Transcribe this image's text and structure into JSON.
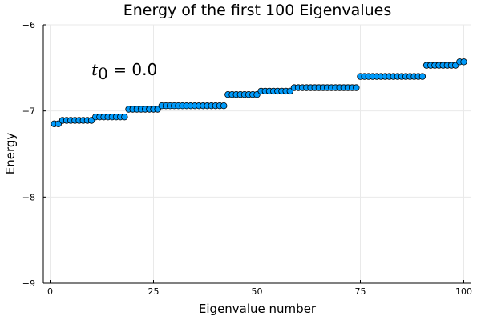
{
  "chart_data": {
    "type": "scatter",
    "title": "Energy of the first 100 Eigenvalues",
    "xlabel": "Eigenvalue number",
    "ylabel": "Energy",
    "xlim": [
      0,
      100
    ],
    "ylim": [
      -9,
      -6
    ],
    "xticks": [
      0,
      25,
      50,
      75,
      100
    ],
    "xtick_labels": [
      "0",
      "25",
      "50",
      "75",
      "100"
    ],
    "yticks": [
      -9,
      -8,
      -7,
      -6
    ],
    "ytick_labels": [
      "−9",
      "−8",
      "−7",
      "−6"
    ],
    "grid": true,
    "legend": "none",
    "marker_color": "#009AFA",
    "annotation": {
      "var": "t",
      "sub": "0",
      "eq": " = ",
      "value": "0.0",
      "x": 10,
      "y": -6.52
    },
    "x": [
      1,
      2,
      3,
      4,
      5,
      6,
      7,
      8,
      9,
      10,
      11,
      12,
      13,
      14,
      15,
      16,
      17,
      18,
      19,
      20,
      21,
      22,
      23,
      24,
      25,
      26,
      27,
      28,
      29,
      30,
      31,
      32,
      33,
      34,
      35,
      36,
      37,
      38,
      39,
      40,
      41,
      42,
      43,
      44,
      45,
      46,
      47,
      48,
      49,
      50,
      51,
      52,
      53,
      54,
      55,
      56,
      57,
      58,
      59,
      60,
      61,
      62,
      63,
      64,
      65,
      66,
      67,
      68,
      69,
      70,
      71,
      72,
      73,
      74,
      75,
      76,
      77,
      78,
      79,
      80,
      81,
      82,
      83,
      84,
      85,
      86,
      87,
      88,
      89,
      90,
      91,
      92,
      93,
      94,
      95,
      96,
      97,
      98,
      99,
      100
    ],
    "y": [
      -7.15,
      -7.15,
      -7.11,
      -7.11,
      -7.11,
      -7.11,
      -7.11,
      -7.11,
      -7.11,
      -7.11,
      -7.07,
      -7.07,
      -7.07,
      -7.07,
      -7.07,
      -7.07,
      -7.07,
      -7.07,
      -6.98,
      -6.98,
      -6.98,
      -6.98,
      -6.98,
      -6.98,
      -6.98,
      -6.98,
      -6.94,
      -6.94,
      -6.94,
      -6.94,
      -6.94,
      -6.94,
      -6.94,
      -6.94,
      -6.94,
      -6.94,
      -6.94,
      -6.94,
      -6.94,
      -6.94,
      -6.94,
      -6.94,
      -6.81,
      -6.81,
      -6.81,
      -6.81,
      -6.81,
      -6.81,
      -6.81,
      -6.81,
      -6.77,
      -6.77,
      -6.77,
      -6.77,
      -6.77,
      -6.77,
      -6.77,
      -6.77,
      -6.73,
      -6.73,
      -6.73,
      -6.73,
      -6.73,
      -6.73,
      -6.73,
      -6.73,
      -6.73,
      -6.73,
      -6.73,
      -6.73,
      -6.73,
      -6.73,
      -6.73,
      -6.73,
      -6.6,
      -6.6,
      -6.6,
      -6.6,
      -6.6,
      -6.6,
      -6.6,
      -6.6,
      -6.6,
      -6.6,
      -6.6,
      -6.6,
      -6.6,
      -6.6,
      -6.6,
      -6.6,
      -6.47,
      -6.47,
      -6.47,
      -6.47,
      -6.47,
      -6.47,
      -6.47,
      -6.47,
      -6.43,
      -6.43
    ]
  }
}
